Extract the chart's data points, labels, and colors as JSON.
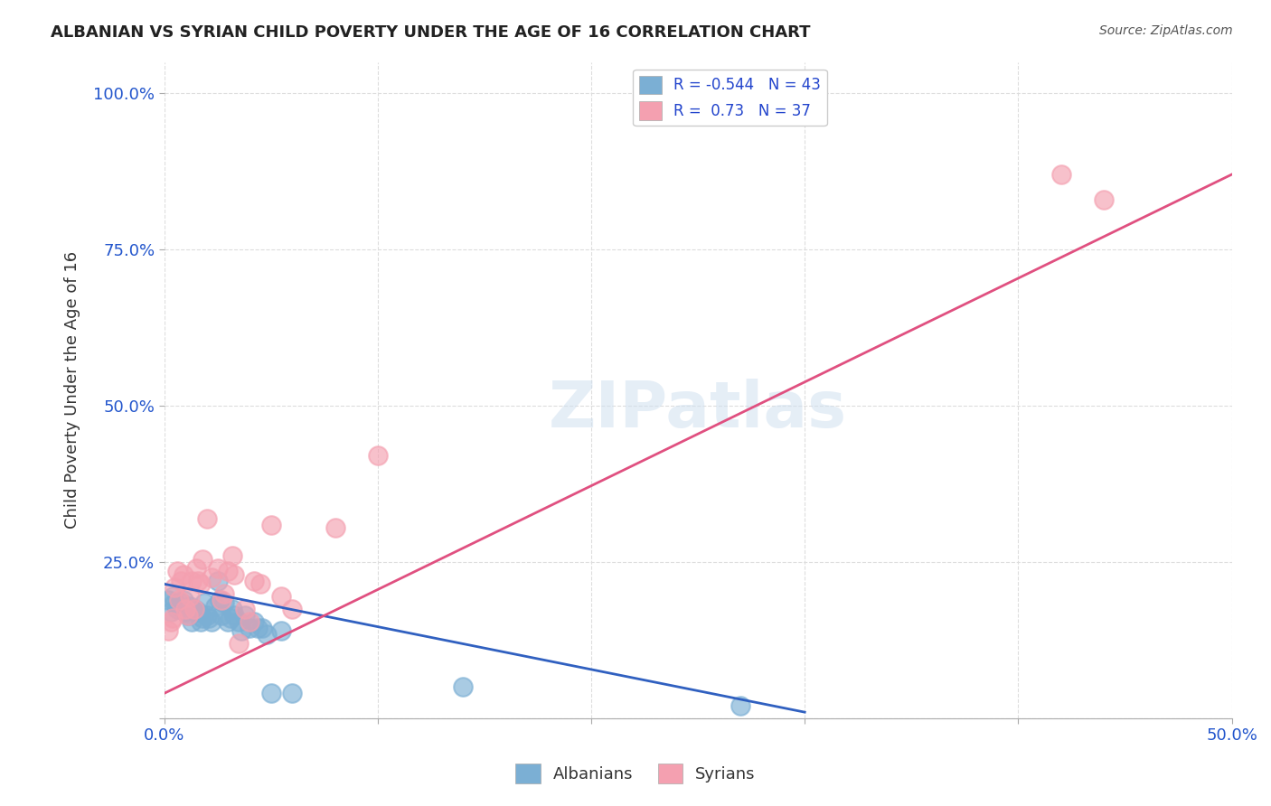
{
  "title": "ALBANIAN VS SYRIAN CHILD POVERTY UNDER THE AGE OF 16 CORRELATION CHART",
  "source": "Source: ZipAtlas.com",
  "ylabel": "Child Poverty Under the Age of 16",
  "xlabel": "",
  "xlim": [
    0.0,
    0.5
  ],
  "ylim": [
    0.0,
    1.05
  ],
  "xticks": [
    0.0,
    0.1,
    0.2,
    0.3,
    0.4,
    0.5
  ],
  "yticks": [
    0.0,
    0.25,
    0.5,
    0.75,
    1.0
  ],
  "xtick_labels": [
    "0.0%",
    "",
    "",
    "",
    "",
    "50.0%"
  ],
  "ytick_labels": [
    "",
    "25.0%",
    "50.0%",
    "75.0%",
    "100.0%"
  ],
  "background_color": "#ffffff",
  "grid_color": "#dddddd",
  "watermark": "ZIPatlas",
  "albanian_color": "#7bafd4",
  "syrian_color": "#f4a0b0",
  "albanian_line_color": "#3060c0",
  "syrian_line_color": "#e05080",
  "albanian_R": -0.544,
  "albanian_N": 43,
  "syrian_R": 0.73,
  "syrian_N": 37,
  "legend_label_albanian": "Albanians",
  "legend_label_syrian": "Syrians",
  "albanian_x": [
    0.002,
    0.003,
    0.004,
    0.005,
    0.006,
    0.007,
    0.008,
    0.009,
    0.01,
    0.011,
    0.012,
    0.013,
    0.014,
    0.015,
    0.016,
    0.017,
    0.018,
    0.019,
    0.02,
    0.021,
    0.022,
    0.024,
    0.025,
    0.026,
    0.027,
    0.028,
    0.03,
    0.031,
    0.032,
    0.033,
    0.035,
    0.036,
    0.038,
    0.04,
    0.042,
    0.044,
    0.046,
    0.048,
    0.05,
    0.055,
    0.06,
    0.14,
    0.27
  ],
  "albanian_y": [
    0.19,
    0.17,
    0.195,
    0.185,
    0.175,
    0.18,
    0.185,
    0.19,
    0.17,
    0.165,
    0.18,
    0.155,
    0.175,
    0.17,
    0.17,
    0.155,
    0.16,
    0.185,
    0.165,
    0.16,
    0.155,
    0.18,
    0.22,
    0.19,
    0.165,
    0.185,
    0.155,
    0.16,
    0.175,
    0.165,
    0.155,
    0.14,
    0.165,
    0.145,
    0.155,
    0.145,
    0.145,
    0.135,
    0.04,
    0.14,
    0.04,
    0.05,
    0.02
  ],
  "syrian_x": [
    0.002,
    0.003,
    0.004,
    0.005,
    0.006,
    0.007,
    0.008,
    0.009,
    0.01,
    0.011,
    0.012,
    0.013,
    0.014,
    0.015,
    0.016,
    0.017,
    0.018,
    0.02,
    0.022,
    0.025,
    0.027,
    0.028,
    0.03,
    0.032,
    0.033,
    0.035,
    0.038,
    0.04,
    0.042,
    0.045,
    0.05,
    0.055,
    0.06,
    0.08,
    0.1,
    0.42,
    0.44
  ],
  "syrian_y": [
    0.14,
    0.155,
    0.16,
    0.21,
    0.235,
    0.19,
    0.22,
    0.23,
    0.175,
    0.165,
    0.195,
    0.22,
    0.175,
    0.24,
    0.22,
    0.215,
    0.255,
    0.32,
    0.225,
    0.24,
    0.19,
    0.2,
    0.235,
    0.26,
    0.23,
    0.12,
    0.175,
    0.155,
    0.22,
    0.215,
    0.31,
    0.195,
    0.175,
    0.305,
    0.42,
    0.87,
    0.83
  ],
  "albanian_line_x0": 0.0,
  "albanian_line_x1": 0.3,
  "albanian_line_y0": 0.215,
  "albanian_line_y1": 0.01,
  "syrian_line_x0": 0.0,
  "syrian_line_x1": 0.5,
  "syrian_line_y0": 0.04,
  "syrian_line_y1": 0.87
}
